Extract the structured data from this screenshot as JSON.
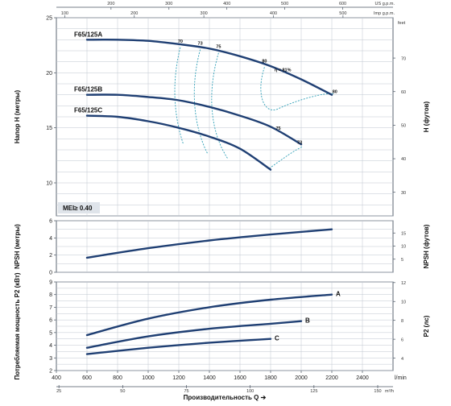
{
  "chart_data": [
    {
      "type": "line",
      "panel": "head",
      "ylabel": "Напор H (метры)",
      "ylabel_right": "H (футов)",
      "ylim": [
        7,
        25
      ],
      "yticks": [
        10,
        15,
        20,
        25
      ],
      "right_unit": "feet",
      "right_ticks": [
        30,
        40,
        50,
        60,
        70
      ],
      "right_top_label": "feet",
      "top_axes": [
        {
          "label": "US g.p.m.",
          "ticks": [
            100,
            200,
            300,
            400,
            500,
            600
          ]
        },
        {
          "label": "Imp g.p.m.",
          "ticks": [
            100,
            200,
            300,
            400,
            500
          ]
        }
      ],
      "annotation": "MEI≥ 0.40",
      "series": [
        {
          "name": "F65/125A",
          "x": [
            600,
            800,
            1000,
            1200,
            1400,
            1600,
            1800,
            2000,
            2200
          ],
          "values": [
            23.0,
            23.0,
            22.9,
            22.6,
            22.2,
            21.5,
            20.6,
            19.4,
            18.0
          ]
        },
        {
          "name": "F65/125B",
          "x": [
            600,
            800,
            1000,
            1200,
            1400,
            1600,
            1800,
            2000
          ],
          "values": [
            18.0,
            18.0,
            17.8,
            17.5,
            16.9,
            16.1,
            15.1,
            13.5
          ]
        },
        {
          "name": "F65/125C",
          "x": [
            600,
            800,
            1000,
            1200,
            1400,
            1600,
            1800
          ],
          "values": [
            16.1,
            16.0,
            15.6,
            15.0,
            14.2,
            13.1,
            11.2
          ]
        }
      ],
      "efficiency_labels": [
        {
          "text": "70",
          "x": 1210,
          "y": 22.6
        },
        {
          "text": "73",
          "x": 1340,
          "y": 22.4
        },
        {
          "text": "75",
          "x": 1460,
          "y": 22.1
        },
        {
          "text": "80",
          "x": 1760,
          "y": 20.8
        },
        {
          "text": "η = 81%",
          "x": 1880,
          "y": 20.0
        },
        {
          "text": "80",
          "x": 2220,
          "y": 18.0
        },
        {
          "text": "75",
          "x": 1850,
          "y": 14.7
        },
        {
          "text": "73",
          "x": 1990,
          "y": 13.4
        }
      ]
    },
    {
      "type": "line",
      "panel": "npsh",
      "ylabel": "NPSH (метры)",
      "ylabel_right": "NPSH (футов)",
      "ylim": [
        0,
        6
      ],
      "yticks": [
        0,
        2,
        4,
        6
      ],
      "right_ticks": [
        5,
        10,
        15
      ],
      "series": [
        {
          "name": "NPSH",
          "x": [
            600,
            1000,
            1400,
            1800,
            2200
          ],
          "values": [
            1.7,
            2.8,
            3.7,
            4.4,
            5.0
          ]
        }
      ]
    },
    {
      "type": "line",
      "panel": "power",
      "ylabel": "Потребляемая мощность P2 (кВт)",
      "ylabel_right": "P2 (лс)",
      "ylim": [
        2,
        9
      ],
      "yticks": [
        2,
        3,
        4,
        5,
        6,
        7,
        8,
        9
      ],
      "right_ticks": [
        4,
        6,
        8,
        10,
        12
      ],
      "xlabel": "Производительность Q",
      "x_units": "l/min",
      "x_ticks": [
        400,
        600,
        800,
        1000,
        1200,
        1400,
        1600,
        1800,
        2000,
        2200,
        2400
      ],
      "x_units_bottom": "m³/h",
      "x_ticks_bottom": [
        25,
        50,
        75,
        100,
        125,
        150
      ],
      "series": [
        {
          "name": "A",
          "x": [
            600,
            1000,
            1400,
            1800,
            2200
          ],
          "values": [
            4.8,
            6.1,
            7.0,
            7.6,
            8.0
          ]
        },
        {
          "name": "B",
          "x": [
            600,
            1000,
            1400,
            1800,
            2000
          ],
          "values": [
            3.8,
            4.7,
            5.3,
            5.7,
            5.9
          ]
        },
        {
          "name": "C",
          "x": [
            600,
            1000,
            1400,
            1800
          ],
          "values": [
            3.3,
            3.8,
            4.2,
            4.5
          ]
        }
      ]
    }
  ]
}
